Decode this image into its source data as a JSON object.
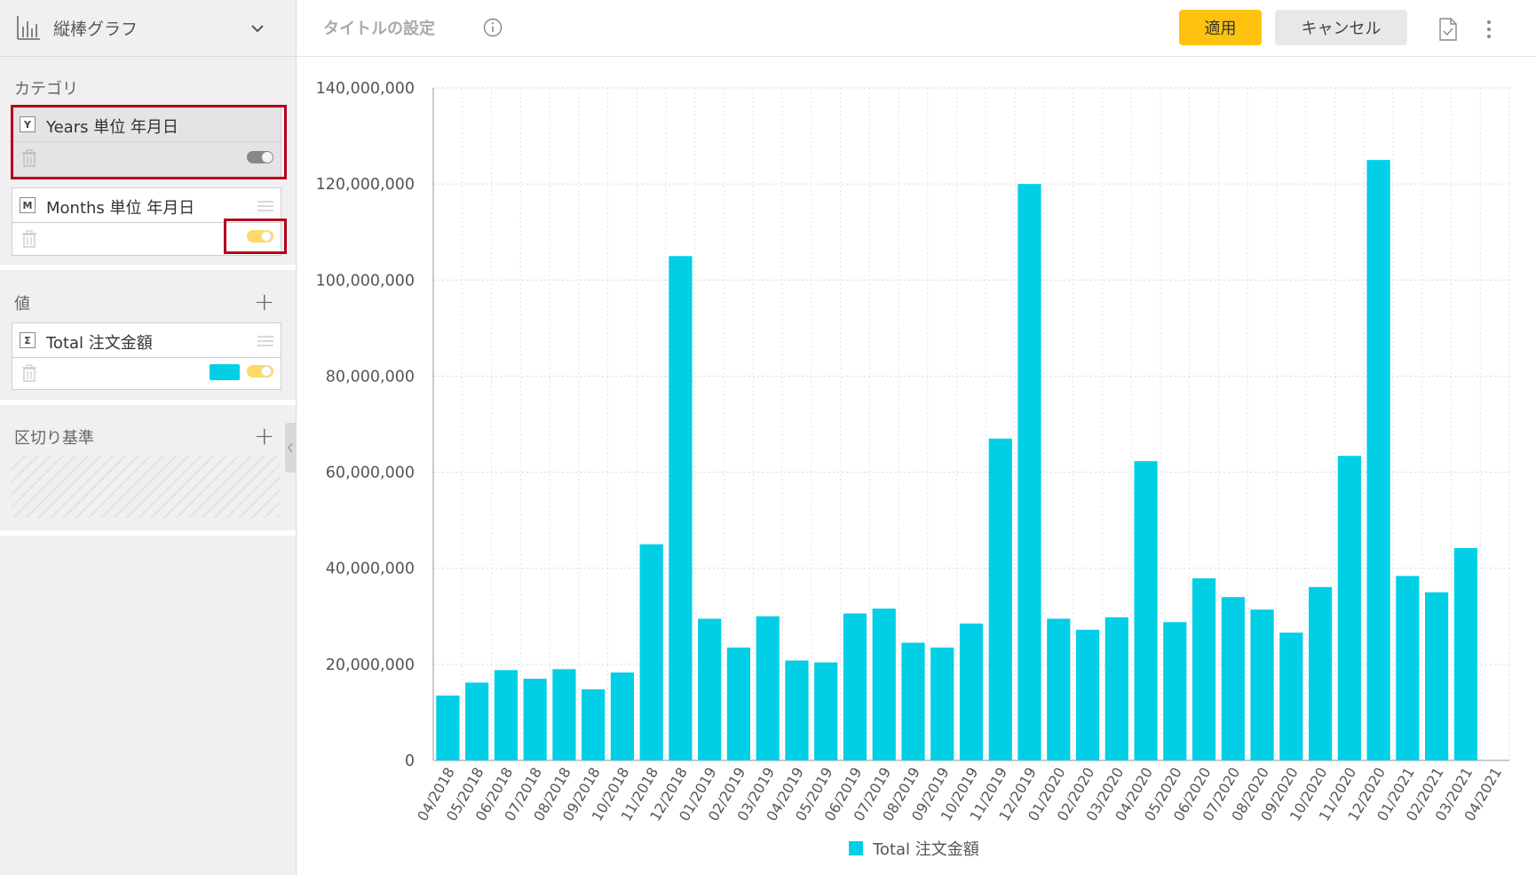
{
  "left_panel": {
    "chart_type": "縦棒グラフ",
    "category_title": "カテゴリ",
    "category_fields": [
      {
        "badge": "Y",
        "label": "Years 単位 年月日",
        "toggle_on": false
      },
      {
        "badge": "M",
        "label": "Months 単位 年月日",
        "toggle_on": true
      }
    ],
    "values_title": "値",
    "value_fields": [
      {
        "badge": "Σ",
        "label": "Total 注文金額",
        "color": "#00cfe6",
        "toggle_on": true
      }
    ],
    "breakout_title": "区切り基準",
    "plus_label": "+"
  },
  "topbar": {
    "title_placeholder": "タイトルの設定",
    "apply_label": "適用",
    "cancel_label": "キャンセル"
  },
  "colors": {
    "bar": "#00cfe6",
    "accent": "#ffc20e",
    "highlight": "#b3001b",
    "toggle_on": "#ffd966",
    "toggle_off": "#888888"
  },
  "chart_data": {
    "type": "bar",
    "title": "",
    "xlabel": "",
    "ylabel": "",
    "ylim": [
      0,
      140000000
    ],
    "yticks": [
      0,
      20000000,
      40000000,
      60000000,
      80000000,
      100000000,
      120000000,
      140000000
    ],
    "ytick_labels": [
      "0",
      "20,000,000",
      "40,000,000",
      "60,000,000",
      "80,000,000",
      "100,000,000",
      "120,000,000",
      "140,000,000"
    ],
    "grid": true,
    "legend_position": "bottom",
    "categories": [
      "04/2018",
      "05/2018",
      "06/2018",
      "07/2018",
      "08/2018",
      "09/2018",
      "10/2018",
      "11/2018",
      "12/2018",
      "01/2019",
      "02/2019",
      "03/2019",
      "04/2019",
      "05/2019",
      "06/2019",
      "07/2019",
      "08/2019",
      "09/2019",
      "10/2019",
      "11/2019",
      "12/2019",
      "01/2020",
      "02/2020",
      "03/2020",
      "04/2020",
      "05/2020",
      "06/2020",
      "07/2020",
      "08/2020",
      "09/2020",
      "10/2020",
      "11/2020",
      "12/2020",
      "01/2021",
      "02/2021",
      "03/2021",
      "04/2021"
    ],
    "series": [
      {
        "name": "Total 注文金額",
        "color": "#00cfe6",
        "values": [
          13500000,
          16200000,
          18800000,
          17000000,
          19000000,
          14800000,
          18300000,
          45000000,
          105000000,
          29500000,
          23500000,
          30000000,
          20800000,
          20400000,
          30600000,
          31600000,
          24500000,
          23500000,
          28500000,
          67000000,
          120000000,
          29500000,
          27200000,
          29800000,
          62300000,
          28800000,
          37900000,
          34000000,
          31400000,
          26600000,
          36100000,
          63400000,
          125000000,
          38400000,
          35000000,
          44200000,
          null
        ]
      }
    ]
  }
}
